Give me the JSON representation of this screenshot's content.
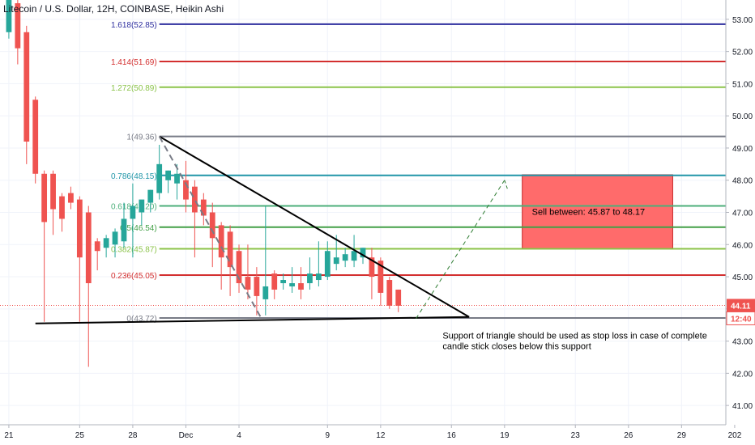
{
  "chart_data": {
    "type": "candlestick",
    "title": "Litecoin / U.S. Dollar, 12H, COINBASE, Heikin Ashi",
    "price_axis": {
      "ticks": [
        "53.00",
        "52.00",
        "51.00",
        "50.00",
        "49.00",
        "48.00",
        "47.00",
        "46.00",
        "45.00",
        "44.00",
        "43.00",
        "42.00",
        "41.00"
      ],
      "range": [
        40.4,
        53.6
      ],
      "current_price_label": "44.11",
      "countdown_label": "12:40",
      "current_price": 44.11,
      "label_color": "#ef5350"
    },
    "time_axis": {
      "ticks": [
        {
          "label": "21",
          "t": 0
        },
        {
          "label": "25",
          "t": 8
        },
        {
          "label": "28",
          "t": 14
        },
        {
          "label": "Dec",
          "t": 20
        },
        {
          "label": "4",
          "t": 26
        },
        {
          "label": "9",
          "t": 36
        },
        {
          "label": "12",
          "t": 42
        },
        {
          "label": "16",
          "t": 50
        },
        {
          "label": "19",
          "t": 56
        },
        {
          "label": "23",
          "t": 64
        },
        {
          "label": "26",
          "t": 70
        },
        {
          "label": "29",
          "t": 76
        },
        {
          "label": "202",
          "t": 82
        }
      ],
      "range": [
        -1,
        81
      ]
    },
    "candles": [
      {
        "t": 0,
        "o": 52.6,
        "h": 53.6,
        "l": 52.4,
        "c": 53.6
      },
      {
        "t": 1,
        "o": 53.5,
        "h": 53.6,
        "l": 51.6,
        "c": 52.1
      },
      {
        "t": 2,
        "o": 52.6,
        "h": 52.8,
        "l": 48.5,
        "c": 49.2
      },
      {
        "t": 3,
        "o": 50.5,
        "h": 50.6,
        "l": 47.9,
        "c": 48.2
      },
      {
        "t": 4,
        "o": 48.2,
        "h": 48.3,
        "l": 43.6,
        "c": 46.7
      },
      {
        "t": 5,
        "o": 48.2,
        "h": 48.3,
        "l": 46.3,
        "c": 47.1
      },
      {
        "t": 6,
        "o": 47.5,
        "h": 47.6,
        "l": 46.4,
        "c": 46.8
      },
      {
        "t": 7,
        "o": 47.6,
        "h": 47.8,
        "l": 47.1,
        "c": 47.3
      },
      {
        "t": 8,
        "o": 47.4,
        "h": 47.5,
        "l": 43.6,
        "c": 45.6
      },
      {
        "t": 9,
        "o": 47.0,
        "h": 47.2,
        "l": 42.2,
        "c": 44.8
      },
      {
        "t": 10,
        "o": 46.1,
        "h": 46.2,
        "l": 45.2,
        "c": 45.8
      },
      {
        "t": 11,
        "o": 45.9,
        "h": 46.3,
        "l": 45.6,
        "c": 46.2
      },
      {
        "t": 12,
        "o": 46.0,
        "h": 46.5,
        "l": 45.6,
        "c": 46.4
      },
      {
        "t": 13,
        "o": 46.1,
        "h": 47.3,
        "l": 45.9,
        "c": 46.8
      },
      {
        "t": 14,
        "o": 46.8,
        "h": 47.9,
        "l": 45.6,
        "c": 47.2
      },
      {
        "t": 15,
        "o": 47.0,
        "h": 47.3,
        "l": 46.6,
        "c": 47.4
      },
      {
        "t": 16,
        "o": 47.3,
        "h": 47.7,
        "l": 47.0,
        "c": 47.7
      },
      {
        "t": 17,
        "o": 47.6,
        "h": 49.1,
        "l": 47.4,
        "c": 48.5
      },
      {
        "t": 18,
        "o": 48.0,
        "h": 48.3,
        "l": 47.6,
        "c": 48.3
      },
      {
        "t": 19,
        "o": 47.9,
        "h": 48.5,
        "l": 47.4,
        "c": 48.2
      },
      {
        "t": 20,
        "o": 48.0,
        "h": 48.6,
        "l": 47.0,
        "c": 47.4
      },
      {
        "t": 21,
        "o": 47.8,
        "h": 48.0,
        "l": 45.6,
        "c": 47.0
      },
      {
        "t": 22,
        "o": 47.4,
        "h": 47.6,
        "l": 46.6,
        "c": 46.9
      },
      {
        "t": 23,
        "o": 47.0,
        "h": 47.3,
        "l": 45.3,
        "c": 46.2
      },
      {
        "t": 24,
        "o": 46.6,
        "h": 46.7,
        "l": 44.6,
        "c": 45.6
      },
      {
        "t": 25,
        "o": 46.4,
        "h": 46.6,
        "l": 44.4,
        "c": 45.3
      },
      {
        "t": 26,
        "o": 45.8,
        "h": 46.0,
        "l": 44.5,
        "c": 44.8
      },
      {
        "t": 27,
        "o": 45.0,
        "h": 46.0,
        "l": 44.3,
        "c": 44.6
      },
      {
        "t": 28,
        "o": 45.0,
        "h": 45.3,
        "l": 43.8,
        "c": 44.4
      },
      {
        "t": 29,
        "o": 44.3,
        "h": 47.2,
        "l": 43.8,
        "c": 44.7
      },
      {
        "t": 30,
        "o": 45.1,
        "h": 45.2,
        "l": 44.3,
        "c": 44.6
      },
      {
        "t": 31,
        "o": 44.8,
        "h": 45.1,
        "l": 44.6,
        "c": 44.9
      },
      {
        "t": 32,
        "o": 44.7,
        "h": 45.3,
        "l": 44.5,
        "c": 44.8
      },
      {
        "t": 33,
        "o": 44.8,
        "h": 45.3,
        "l": 44.3,
        "c": 44.6
      },
      {
        "t": 34,
        "o": 44.8,
        "h": 45.6,
        "l": 44.6,
        "c": 45.1
      },
      {
        "t": 35,
        "o": 44.9,
        "h": 46.1,
        "l": 44.7,
        "c": 45.1
      },
      {
        "t": 36,
        "o": 45.0,
        "h": 46.1,
        "l": 44.9,
        "c": 45.8
      },
      {
        "t": 37,
        "o": 45.4,
        "h": 46.3,
        "l": 45.2,
        "c": 45.6
      },
      {
        "t": 38,
        "o": 45.5,
        "h": 45.9,
        "l": 45.3,
        "c": 45.7
      },
      {
        "t": 39,
        "o": 45.5,
        "h": 46.3,
        "l": 45.3,
        "c": 45.8
      },
      {
        "t": 40,
        "o": 45.6,
        "h": 45.9,
        "l": 45.4,
        "c": 45.9
      },
      {
        "t": 41,
        "o": 45.6,
        "h": 45.9,
        "l": 44.3,
        "c": 45.0
      },
      {
        "t": 42,
        "o": 45.5,
        "h": 45.6,
        "l": 44.1,
        "c": 44.5
      },
      {
        "t": 43,
        "o": 44.9,
        "h": 45.0,
        "l": 44.0,
        "c": 44.1
      },
      {
        "t": 44,
        "o": 44.6,
        "h": 44.6,
        "l": 43.9,
        "c": 44.1
      }
    ],
    "fib_levels": [
      {
        "label": "1.618(52.85)",
        "price": 52.85,
        "color": "#2f2f9f"
      },
      {
        "label": "1.414(51.69)",
        "price": 51.69,
        "color": "#d32f2f"
      },
      {
        "label": "1.272(50.89)",
        "price": 50.89,
        "color": "#8bc34a"
      },
      {
        "label": "1(49.36)",
        "price": 49.36,
        "color": "#787b86"
      },
      {
        "label": "0.786(48.15)",
        "price": 48.15,
        "color": "#2196a8"
      },
      {
        "label": "0.618(47.20)",
        "price": 47.2,
        "color": "#4caf7a"
      },
      {
        "label": "0.5(46.54)",
        "price": 46.54,
        "color": "#43a047"
      },
      {
        "label": "0.382(45.87)",
        "price": 45.87,
        "color": "#8bc34a"
      },
      {
        "label": "0.236(45.05)",
        "price": 45.05,
        "color": "#d32f2f"
      },
      {
        "label": "0(43.72)",
        "price": 43.72,
        "color": "#787b86"
      }
    ],
    "sell_zone": {
      "label": "Sell between: 45.87 to 48.17",
      "from": 45.87,
      "to": 48.17,
      "t_start": 58,
      "t_end": 75,
      "color": "#ff6b6b"
    },
    "annotation": {
      "lines": [
        "Support of triangle should be used as stop loss in case of complete",
        "candle stick closes below this support"
      ],
      "t": 49,
      "price": 43.0
    },
    "triangle": {
      "apex_t": 17,
      "apex_p": 49.36,
      "support_start": {
        "t": 3,
        "p": 43.55
      },
      "tip": {
        "t": 52,
        "p": 43.75
      }
    },
    "projection": {
      "start": {
        "t": 46,
        "p": 43.7
      },
      "end": {
        "t": 56,
        "p": 48.0
      }
    },
    "bull_color": "#26a69a",
    "bear_color": "#ef5350"
  }
}
